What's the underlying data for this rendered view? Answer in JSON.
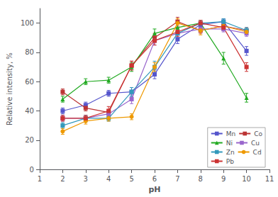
{
  "chart_data": {
    "type": "line",
    "xlabel": "pH",
    "ylabel": "Relative intensity, %",
    "x": [
      2,
      3,
      4,
      5,
      6,
      7,
      8,
      9,
      10
    ],
    "xlim": [
      1,
      11
    ],
    "ylim": [
      0,
      110
    ],
    "xticks": [
      1,
      2,
      3,
      4,
      5,
      6,
      7,
      8,
      9,
      10,
      11
    ],
    "yticks": [
      0,
      20,
      40,
      60,
      80,
      100
    ],
    "grid": false,
    "legend": "lower right",
    "series": [
      {
        "name": "Mn",
        "color": "#5555cc",
        "marker": "square",
        "values": [
          40,
          44,
          52,
          53,
          65,
          89,
          99,
          101,
          81
        ],
        "errors": [
          2,
          2,
          2,
          3,
          3,
          3,
          2,
          2,
          3
        ]
      },
      {
        "name": "Co",
        "color": "#bb3333",
        "marker": "square",
        "values": [
          53,
          42,
          39,
          71,
          90,
          101,
          95,
          98,
          95
        ],
        "errors": [
          2,
          2,
          2,
          3,
          3,
          3,
          2,
          3,
          2
        ]
      },
      {
        "name": "Ni",
        "color": "#22aa22",
        "marker": "triangle",
        "values": [
          48,
          60,
          61,
          70,
          93,
          97,
          100,
          76,
          49
        ],
        "errors": [
          2,
          2,
          2,
          3,
          3,
          3,
          2,
          4,
          3
        ]
      },
      {
        "name": "Cu",
        "color": "#9966cc",
        "marker": "square",
        "values": [
          35,
          35,
          38,
          48,
          88,
          93,
          96,
          96,
          93
        ],
        "errors": [
          2,
          2,
          2,
          3,
          3,
          3,
          2,
          2,
          2
        ]
      },
      {
        "name": "Zn",
        "color": "#3399bb",
        "marker": "square",
        "values": [
          30,
          35,
          35,
          53,
          70,
          93,
          100,
          101,
          95
        ],
        "errors": [
          2,
          2,
          2,
          3,
          4,
          3,
          2,
          2,
          2
        ]
      },
      {
        "name": "Cd",
        "color": "#ee9900",
        "marker": "circle",
        "values": [
          26,
          33,
          35,
          36,
          70,
          100,
          95,
          98,
          94
        ],
        "errors": [
          2,
          2,
          2,
          2,
          3,
          3,
          3,
          3,
          2
        ]
      },
      {
        "name": "Pb",
        "color": "#cc3333",
        "marker": "square",
        "values": [
          35,
          35,
          40,
          71,
          88,
          94,
          100,
          97,
          70
        ],
        "errors": [
          2,
          2,
          3,
          3,
          3,
          3,
          2,
          2,
          3
        ]
      }
    ]
  }
}
